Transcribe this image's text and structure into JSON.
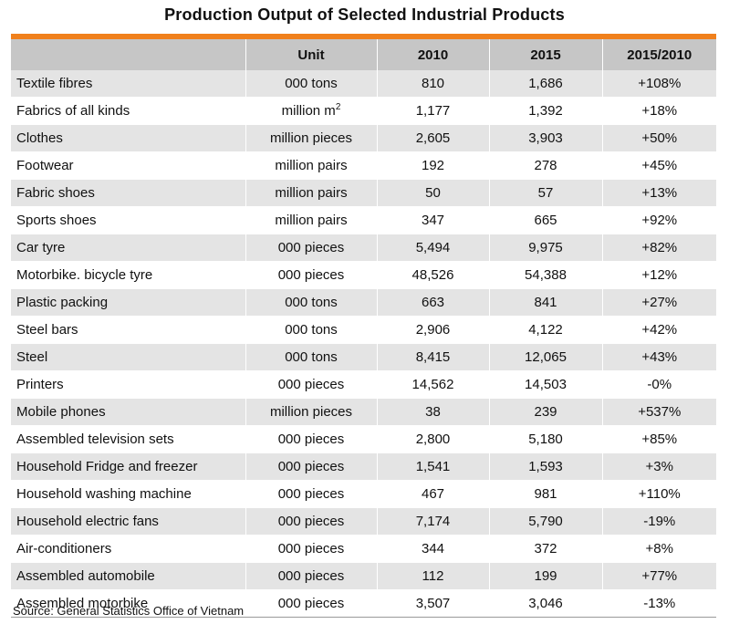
{
  "title": "Production Output of Selected Industrial Products",
  "accent_color": "#f0801c",
  "header": {
    "product": "",
    "unit": "Unit",
    "y2010": "2010",
    "y2015": "2015",
    "change": "2015/2010"
  },
  "rows": [
    {
      "product": "Textile fibres",
      "unit": "000 tons",
      "sup": "",
      "y2010": "810",
      "y2015": "1,686",
      "change": "+108%"
    },
    {
      "product": "Fabrics of all kinds",
      "unit": "million m",
      "sup": "2",
      "y2010": "1,177",
      "y2015": "1,392",
      "change": "+18%"
    },
    {
      "product": "Clothes",
      "unit": "million pieces",
      "sup": "",
      "y2010": "2,605",
      "y2015": "3,903",
      "change": "+50%"
    },
    {
      "product": "Footwear",
      "unit": "million pairs",
      "sup": "",
      "y2010": "192",
      "y2015": "278",
      "change": "+45%"
    },
    {
      "product": "Fabric shoes",
      "unit": "million pairs",
      "sup": "",
      "y2010": "50",
      "y2015": "57",
      "change": "+13%"
    },
    {
      "product": "Sports shoes",
      "unit": "million pairs",
      "sup": "",
      "y2010": "347",
      "y2015": "665",
      "change": "+92%"
    },
    {
      "product": "Car tyre",
      "unit": "000 pieces",
      "sup": "",
      "y2010": "5,494",
      "y2015": "9,975",
      "change": "+82%"
    },
    {
      "product": "Motorbike. bicycle tyre",
      "unit": "000 pieces",
      "sup": "",
      "y2010": "48,526",
      "y2015": "54,388",
      "change": "+12%"
    },
    {
      "product": "Plastic packing",
      "unit": "000 tons",
      "sup": "",
      "y2010": "663",
      "y2015": "841",
      "change": "+27%"
    },
    {
      "product": "Steel bars",
      "unit": "000 tons",
      "sup": "",
      "y2010": "2,906",
      "y2015": "4,122",
      "change": "+42%"
    },
    {
      "product": "Steel",
      "unit": "000 tons",
      "sup": "",
      "y2010": "8,415",
      "y2015": "12,065",
      "change": "+43%"
    },
    {
      "product": "Printers",
      "unit": "000 pieces",
      "sup": "",
      "y2010": "14,562",
      "y2015": "14,503",
      "change": "-0%"
    },
    {
      "product": "Mobile phones",
      "unit": "million pieces",
      "sup": "",
      "y2010": "38",
      "y2015": "239",
      "change": "+537%"
    },
    {
      "product": "Assembled television sets",
      "unit": "000 pieces",
      "sup": "",
      "y2010": "2,800",
      "y2015": "5,180",
      "change": "+85%"
    },
    {
      "product": "Household Fridge and freezer",
      "unit": "000 pieces",
      "sup": "",
      "y2010": "1,541",
      "y2015": "1,593",
      "change": "+3%"
    },
    {
      "product": "Household washing machine",
      "unit": "000 pieces",
      "sup": "",
      "y2010": "467",
      "y2015": "981",
      "change": "+110%"
    },
    {
      "product": "Household electric fans",
      "unit": "000 pieces",
      "sup": "",
      "y2010": "7,174",
      "y2015": "5,790",
      "change": "-19%"
    },
    {
      "product": "Air-conditioners",
      "unit": "000 pieces",
      "sup": "",
      "y2010": "344",
      "y2015": "372",
      "change": "+8%"
    },
    {
      "product": "Assembled automobile",
      "unit": "000 pieces",
      "sup": "",
      "y2010": "112",
      "y2015": "199",
      "change": "+77%"
    },
    {
      "product": "Assembled motorbike",
      "unit": "000 pieces",
      "sup": "",
      "y2010": "3,507",
      "y2015": "3,046",
      "change": "-13%"
    }
  ],
  "source": "Source: General Statistics Office of Vietnam"
}
